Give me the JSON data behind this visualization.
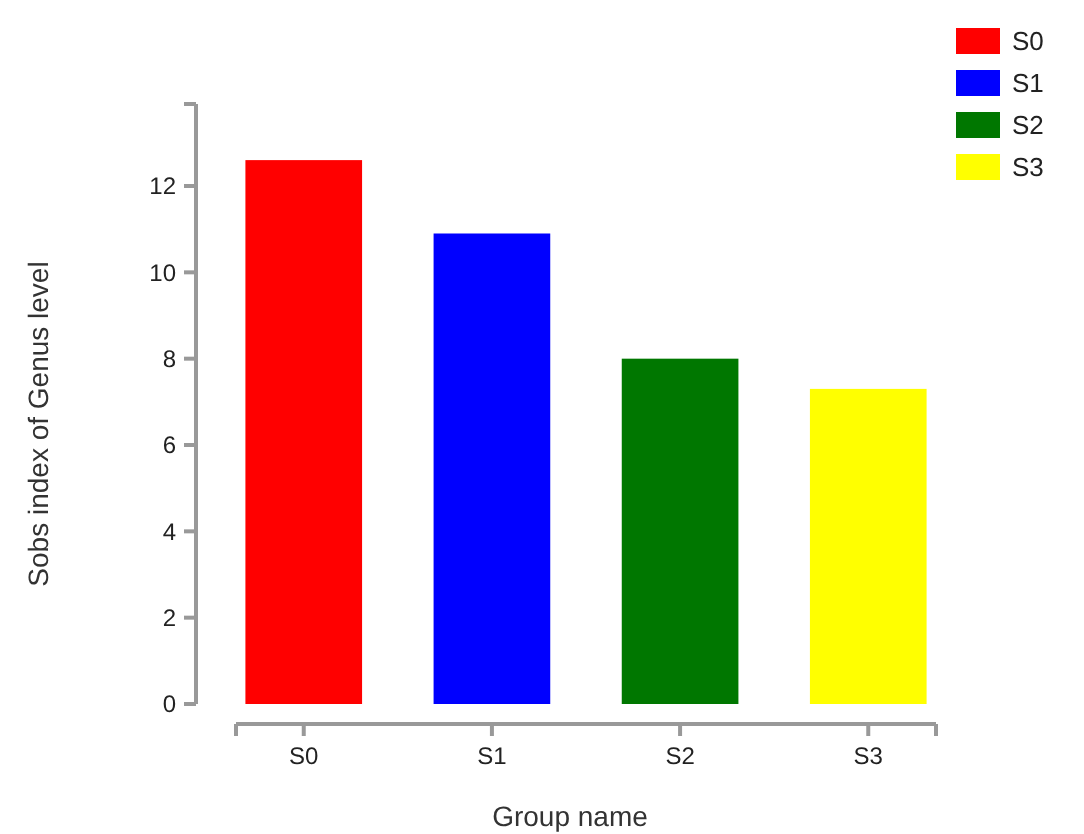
{
  "chart_data": {
    "type": "bar",
    "xlabel": "Group name",
    "ylabel": "Sobs index of Genus level",
    "categories": [
      "S0",
      "S1",
      "S2",
      "S3"
    ],
    "stacked": true,
    "series": [
      {
        "name": "S0",
        "color": "#ff0000",
        "values": [
          12.6,
          null,
          null,
          null
        ]
      },
      {
        "name": "S1",
        "color": "#0000ff",
        "values": [
          null,
          10.9,
          null,
          null
        ]
      },
      {
        "name": "S2",
        "color": "#007700",
        "values": [
          null,
          null,
          8.0,
          null
        ]
      },
      {
        "name": "S3",
        "color": "#ffff00",
        "values": [
          null,
          null,
          null,
          7.3
        ]
      }
    ],
    "ylim": [
      0,
      13.9
    ],
    "yticks": [
      0,
      2,
      4,
      6,
      8,
      10,
      12
    ],
    "legend": "top right"
  }
}
